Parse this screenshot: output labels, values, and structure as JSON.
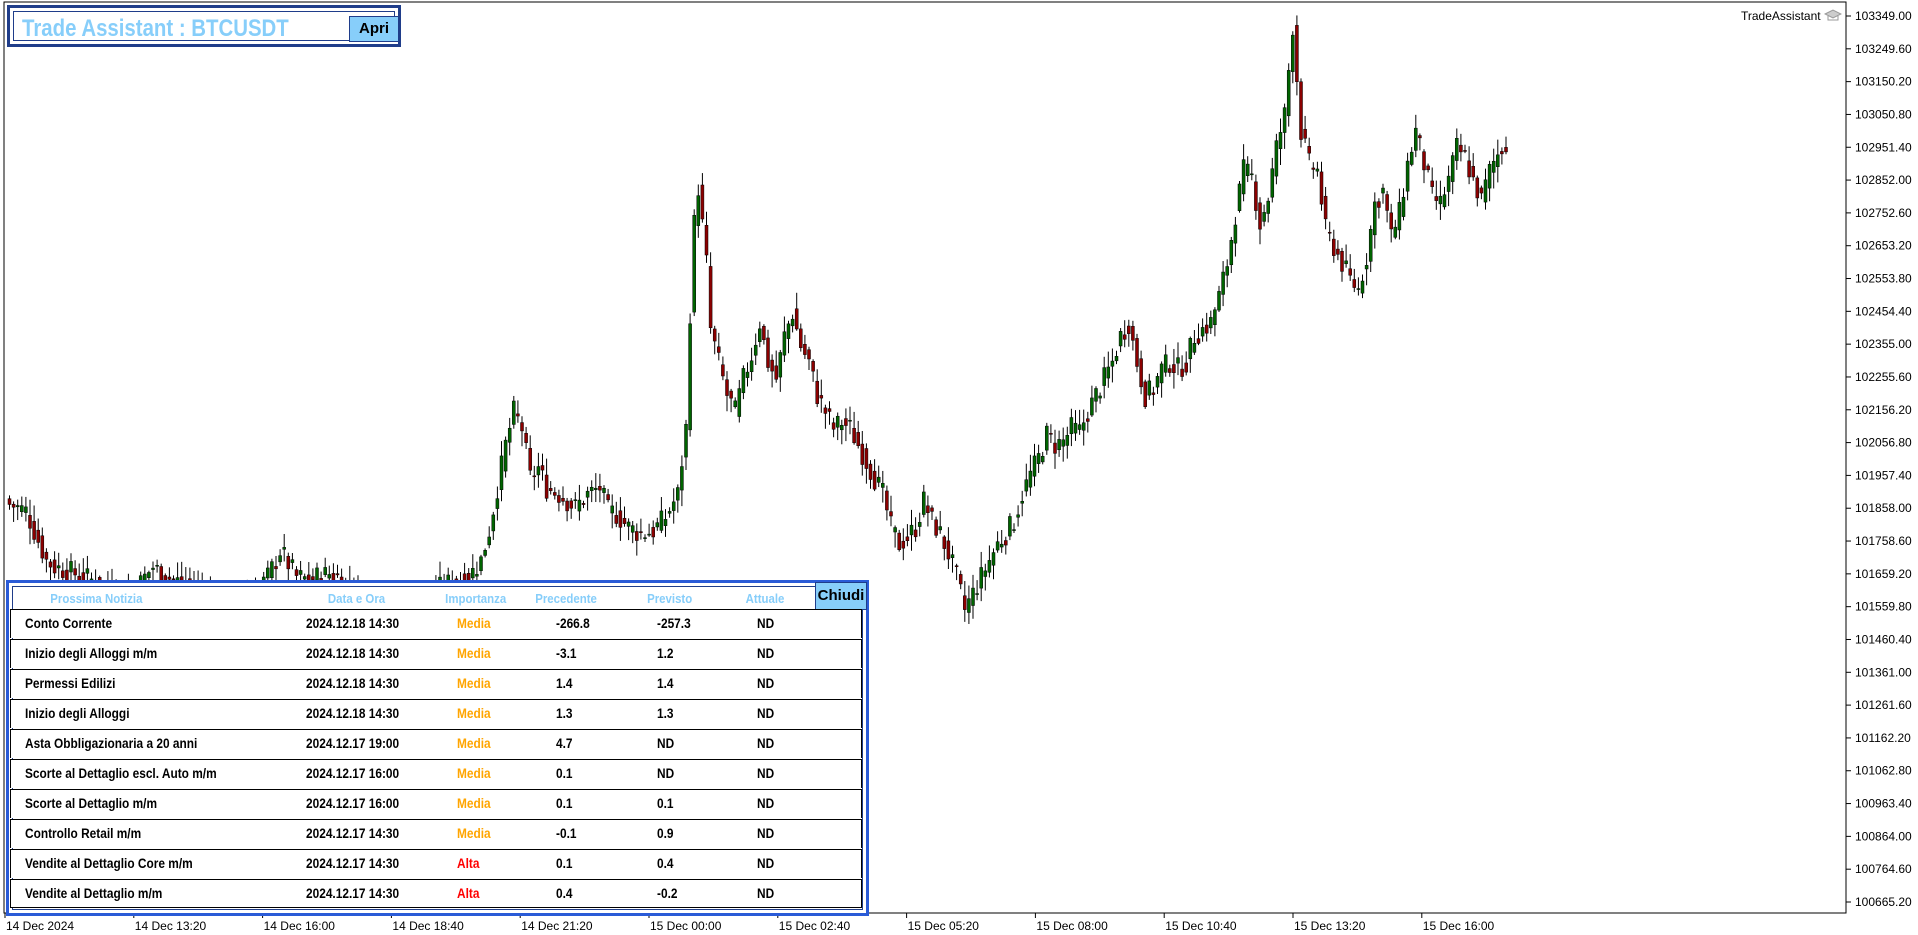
{
  "app": {
    "title": "Trade Assistant : BTCUSDT",
    "open_button": "Apri",
    "close_button": "Chiudi",
    "indicator_label": "TradeAssistant"
  },
  "news": {
    "headers": {
      "name": "Prossima Notizia",
      "date": "Data e Ora",
      "importance": "Importanza",
      "previous": "Precedente",
      "forecast": "Previsto",
      "actual": "Attuale"
    },
    "rows": [
      {
        "name": "Conto Corrente",
        "date": "2024.12.18 14:30",
        "importance": "Media",
        "previous": "-266.8",
        "forecast": "-257.3",
        "actual": "ND"
      },
      {
        "name": "Inizio degli Alloggi m/m",
        "date": "2024.12.18 14:30",
        "importance": "Media",
        "previous": "-3.1",
        "forecast": "1.2",
        "actual": "ND"
      },
      {
        "name": "Permessi Edilizi",
        "date": "2024.12.18 14:30",
        "importance": "Media",
        "previous": "1.4",
        "forecast": "1.4",
        "actual": "ND"
      },
      {
        "name": "Inizio degli Alloggi",
        "date": "2024.12.18 14:30",
        "importance": "Media",
        "previous": "1.3",
        "forecast": "1.3",
        "actual": "ND"
      },
      {
        "name": "Asta Obbligazionaria a 20 anni",
        "date": "2024.12.17 19:00",
        "importance": "Media",
        "previous": "4.7",
        "forecast": "ND",
        "actual": "ND"
      },
      {
        "name": "Scorte al Dettaglio escl. Auto m/m",
        "date": "2024.12.17 16:00",
        "importance": "Media",
        "previous": "0.1",
        "forecast": "ND",
        "actual": "ND"
      },
      {
        "name": "Scorte al Dettaglio m/m",
        "date": "2024.12.17 16:00",
        "importance": "Media",
        "previous": "0.1",
        "forecast": "0.1",
        "actual": "ND"
      },
      {
        "name": "Controllo Retail m/m",
        "date": "2024.12.17 14:30",
        "importance": "Media",
        "previous": "-0.1",
        "forecast": "0.9",
        "actual": "ND"
      },
      {
        "name": "Vendite al Dettaglio Core m/m",
        "date": "2024.12.17 14:30",
        "importance": "Alta",
        "previous": "0.1",
        "forecast": "0.4",
        "actual": "ND"
      },
      {
        "name": "Vendite al Dettaglio m/m",
        "date": "2024.12.17 14:30",
        "importance": "Alta",
        "previous": "0.4",
        "forecast": "-0.2",
        "actual": "ND"
      }
    ]
  },
  "colors": {
    "bull": "#006400",
    "bear": "#8b0000",
    "panel_border": "#2a5bd7",
    "accent": "#87cefa",
    "media": "#ffa500",
    "alta": "#ff0000"
  },
  "chart_data": {
    "type": "candlestick",
    "price_axis_labels": [
      "103349.00",
      "103249.60",
      "103150.20",
      "103050.80",
      "102951.40",
      "102852.00",
      "102752.60",
      "102653.20",
      "102553.80",
      "102454.40",
      "102355.00",
      "102255.60",
      "102156.20",
      "102056.80",
      "101957.40",
      "101858.00",
      "101758.60",
      "101659.20",
      "101559.80",
      "101460.40",
      "101361.00",
      "101261.60",
      "101162.20",
      "101062.80",
      "100963.40",
      "100864.00",
      "100764.60",
      "100665.20"
    ],
    "time_axis_labels": [
      "14 Dec 2024",
      "14 Dec 13:20",
      "14 Dec 16:00",
      "14 Dec 18:40",
      "14 Dec 21:20",
      "15 Dec 00:00",
      "15 Dec 02:40",
      "15 Dec 05:20",
      "15 Dec 08:00",
      "15 Dec 10:40",
      "15 Dec 13:20",
      "15 Dec 16:00"
    ],
    "ylim": [
      100600,
      103390
    ],
    "close_path": [
      [
        0,
        101870
      ],
      [
        4,
        101850
      ],
      [
        7,
        101760
      ],
      [
        9,
        101700
      ],
      [
        11,
        101680
      ],
      [
        14,
        101670
      ],
      [
        18,
        101650
      ],
      [
        20,
        101640
      ],
      [
        22,
        101630
      ],
      [
        24,
        101620
      ],
      [
        30,
        101600
      ],
      [
        33,
        101650
      ],
      [
        35,
        101680
      ],
      [
        37,
        101660
      ],
      [
        40,
        101640
      ],
      [
        43,
        101630
      ],
      [
        46,
        101620
      ],
      [
        50,
        101600
      ],
      [
        55,
        101590
      ],
      [
        60,
        101600
      ],
      [
        63,
        101650
      ],
      [
        65,
        101700
      ],
      [
        66,
        101730
      ],
      [
        68,
        101690
      ],
      [
        70,
        101650
      ],
      [
        73,
        101640
      ],
      [
        75,
        101650
      ],
      [
        78,
        101660
      ],
      [
        80,
        101650
      ],
      [
        85,
        101600
      ],
      [
        90,
        101580
      ],
      [
        95,
        101590
      ],
      [
        100,
        101600
      ],
      [
        106,
        101620
      ],
      [
        108,
        101640
      ],
      [
        112,
        101650
      ],
      [
        115,
        101700
      ],
      [
        117,
        101790
      ],
      [
        119,
        101920
      ],
      [
        121,
        102050
      ],
      [
        123,
        102150
      ],
      [
        125,
        102100
      ],
      [
        127,
        101950
      ],
      [
        129,
        101980
      ],
      [
        131,
        101920
      ],
      [
        134,
        101900
      ],
      [
        136,
        101880
      ],
      [
        138,
        101860
      ],
      [
        141,
        101900
      ],
      [
        144,
        101920
      ],
      [
        146,
        101850
      ],
      [
        148,
        101840
      ],
      [
        151,
        101800
      ],
      [
        154,
        101780
      ],
      [
        157,
        101790
      ],
      [
        160,
        101830
      ],
      [
        163,
        101900
      ],
      [
        165,
        102100
      ],
      [
        166,
        102450
      ],
      [
        167,
        102720
      ],
      [
        168,
        102830
      ],
      [
        170,
        102600
      ],
      [
        171,
        102400
      ],
      [
        173,
        102300
      ],
      [
        175,
        102200
      ],
      [
        177,
        102150
      ],
      [
        179,
        102250
      ],
      [
        181,
        102320
      ],
      [
        183,
        102420
      ],
      [
        185,
        102300
      ],
      [
        187,
        102250
      ],
      [
        189,
        102380
      ],
      [
        191,
        102450
      ],
      [
        193,
        102350
      ],
      [
        195,
        102300
      ],
      [
        197,
        102200
      ],
      [
        199,
        102150
      ],
      [
        201,
        102100
      ],
      [
        203,
        102120
      ],
      [
        205,
        102100
      ],
      [
        207,
        102050
      ],
      [
        209,
        102000
      ],
      [
        211,
        101950
      ],
      [
        213,
        101900
      ],
      [
        215,
        101800
      ],
      [
        217,
        101750
      ],
      [
        219,
        101770
      ],
      [
        221,
        101800
      ],
      [
        223,
        101880
      ],
      [
        225,
        101820
      ],
      [
        227,
        101780
      ],
      [
        229,
        101720
      ],
      [
        231,
        101650
      ],
      [
        233,
        101550
      ],
      [
        235,
        101600
      ],
      [
        237,
        101650
      ],
      [
        239,
        101700
      ],
      [
        241,
        101750
      ],
      [
        243,
        101780
      ],
      [
        245,
        101820
      ],
      [
        247,
        101900
      ],
      [
        249,
        101960
      ],
      [
        251,
        102010
      ],
      [
        253,
        102080
      ],
      [
        255,
        102050
      ],
      [
        257,
        102060
      ],
      [
        259,
        102100
      ],
      [
        261,
        102090
      ],
      [
        263,
        102150
      ],
      [
        265,
        102200
      ],
      [
        267,
        102250
      ],
      [
        269,
        102300
      ],
      [
        271,
        102380
      ],
      [
        273,
        102420
      ],
      [
        275,
        102300
      ],
      [
        277,
        102200
      ],
      [
        279,
        102220
      ],
      [
        281,
        102280
      ],
      [
        283,
        102300
      ],
      [
        285,
        102280
      ],
      [
        287,
        102300
      ],
      [
        289,
        102380
      ],
      [
        291,
        102400
      ],
      [
        293,
        102420
      ],
      [
        295,
        102500
      ],
      [
        297,
        102600
      ],
      [
        299,
        102750
      ],
      [
        301,
        102880
      ],
      [
        303,
        102860
      ],
      [
        305,
        102720
      ],
      [
        307,
        102800
      ],
      [
        309,
        102950
      ],
      [
        311,
        103050
      ],
      [
        313,
        103320
      ],
      [
        315,
        103000
      ],
      [
        317,
        102900
      ],
      [
        319,
        102880
      ],
      [
        321,
        102700
      ],
      [
        323,
        102650
      ],
      [
        325,
        102600
      ],
      [
        327,
        102550
      ],
      [
        329,
        102520
      ],
      [
        331,
        102620
      ],
      [
        333,
        102780
      ],
      [
        335,
        102820
      ],
      [
        337,
        102680
      ],
      [
        339,
        102750
      ],
      [
        341,
        102900
      ],
      [
        343,
        103000
      ],
      [
        345,
        102900
      ],
      [
        347,
        102800
      ],
      [
        349,
        102780
      ],
      [
        351,
        102850
      ],
      [
        353,
        102950
      ],
      [
        355,
        102920
      ],
      [
        357,
        102850
      ],
      [
        359,
        102790
      ],
      [
        361,
        102880
      ],
      [
        363,
        102930
      ],
      [
        365,
        102970
      ]
    ]
  }
}
